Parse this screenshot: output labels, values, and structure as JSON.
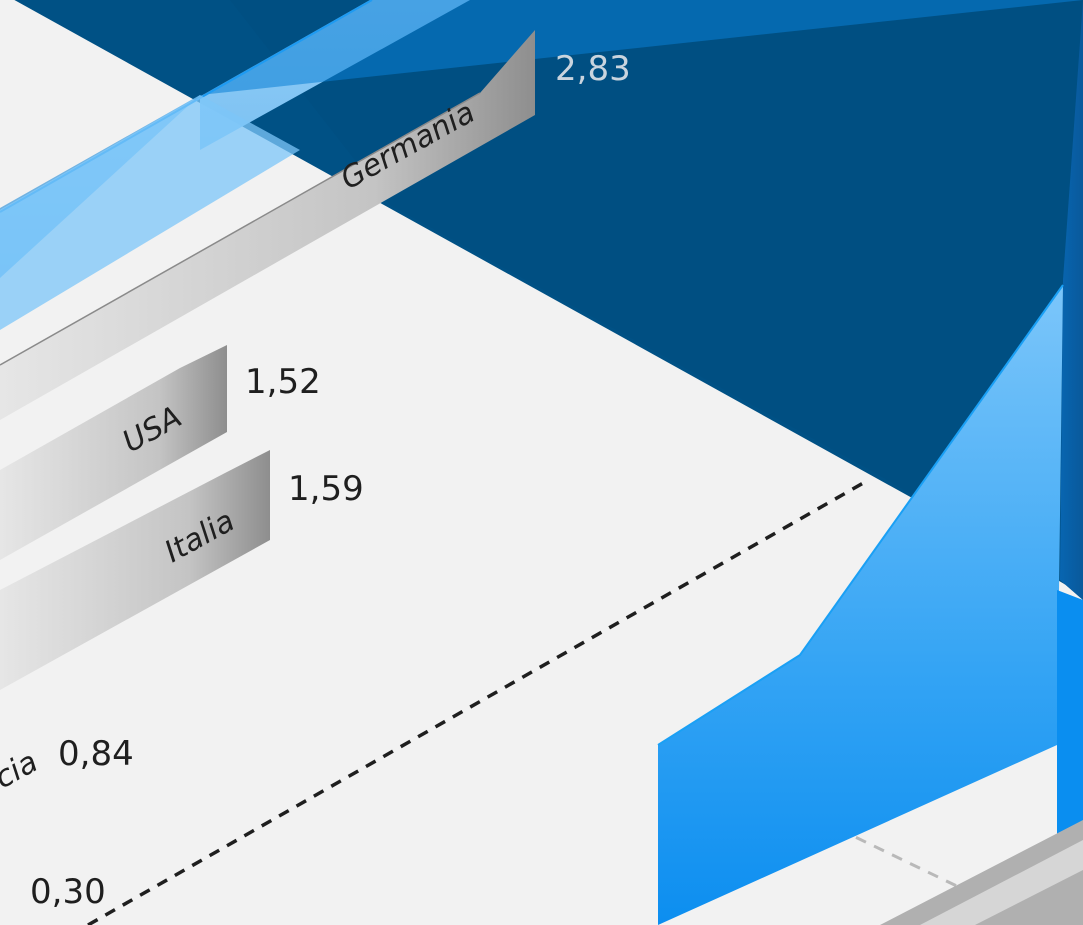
{
  "chart_data": {
    "type": "bar",
    "title": "",
    "xlabel": "",
    "ylabel": "",
    "style": "isometric 3D bars",
    "decimal_separator": ",",
    "bars": [
      {
        "category": "Germania",
        "value": 2.83,
        "value_label": "2,83"
      },
      {
        "category": "USA",
        "value": 1.52,
        "value_label": "1,52"
      },
      {
        "category": "Italia",
        "value": 1.59,
        "value_label": "1,59"
      },
      {
        "category": "Francia",
        "category_visible": "cia",
        "value": 0.84,
        "value_label": "0,84"
      },
      {
        "category": "",
        "value": 0.3,
        "value_label": "0,30"
      }
    ]
  },
  "colors": {
    "background": "#f2f2f2",
    "dark_blue": "#004d80",
    "bright_blue": "#0a8be8",
    "light_blue": "#7fc8f8",
    "bar_gray_light": "#e2e2e2",
    "bar_gray_dark": "#8c8c8c",
    "label_light": "#c9d4de"
  }
}
